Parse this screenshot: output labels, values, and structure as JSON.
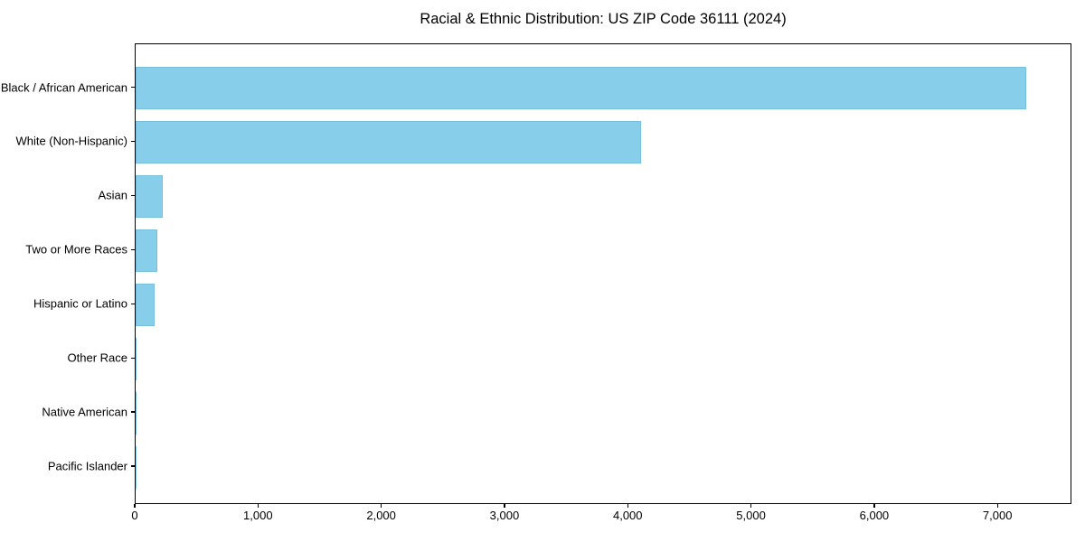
{
  "chart_data": {
    "type": "bar",
    "orientation": "horizontal",
    "title": "Racial & Ethnic Distribution: US ZIP Code 36111 (2024)",
    "categories": [
      "Black / African American",
      "White (Non-Hispanic)",
      "Asian",
      "Two or More Races",
      "Hispanic or Latino",
      "Other Race",
      "Native American",
      "Pacific Islander"
    ],
    "values": [
      7240,
      4110,
      220,
      176,
      158,
      10,
      4,
      2
    ],
    "xlabel": "",
    "ylabel": "",
    "xlim": [
      0,
      7600
    ],
    "x_ticks": [
      0,
      1000,
      2000,
      3000,
      4000,
      5000,
      6000,
      7000
    ],
    "x_tick_labels": [
      "0",
      "1,000",
      "2,000",
      "3,000",
      "4,000",
      "5,000",
      "6,000",
      "7,000"
    ],
    "grid": false,
    "legend": "none",
    "bar_color": "#87CEEB",
    "bar_edge_color": "#6FB7D6",
    "axis_color": "#000000",
    "background_color": "#FFFFFF"
  }
}
